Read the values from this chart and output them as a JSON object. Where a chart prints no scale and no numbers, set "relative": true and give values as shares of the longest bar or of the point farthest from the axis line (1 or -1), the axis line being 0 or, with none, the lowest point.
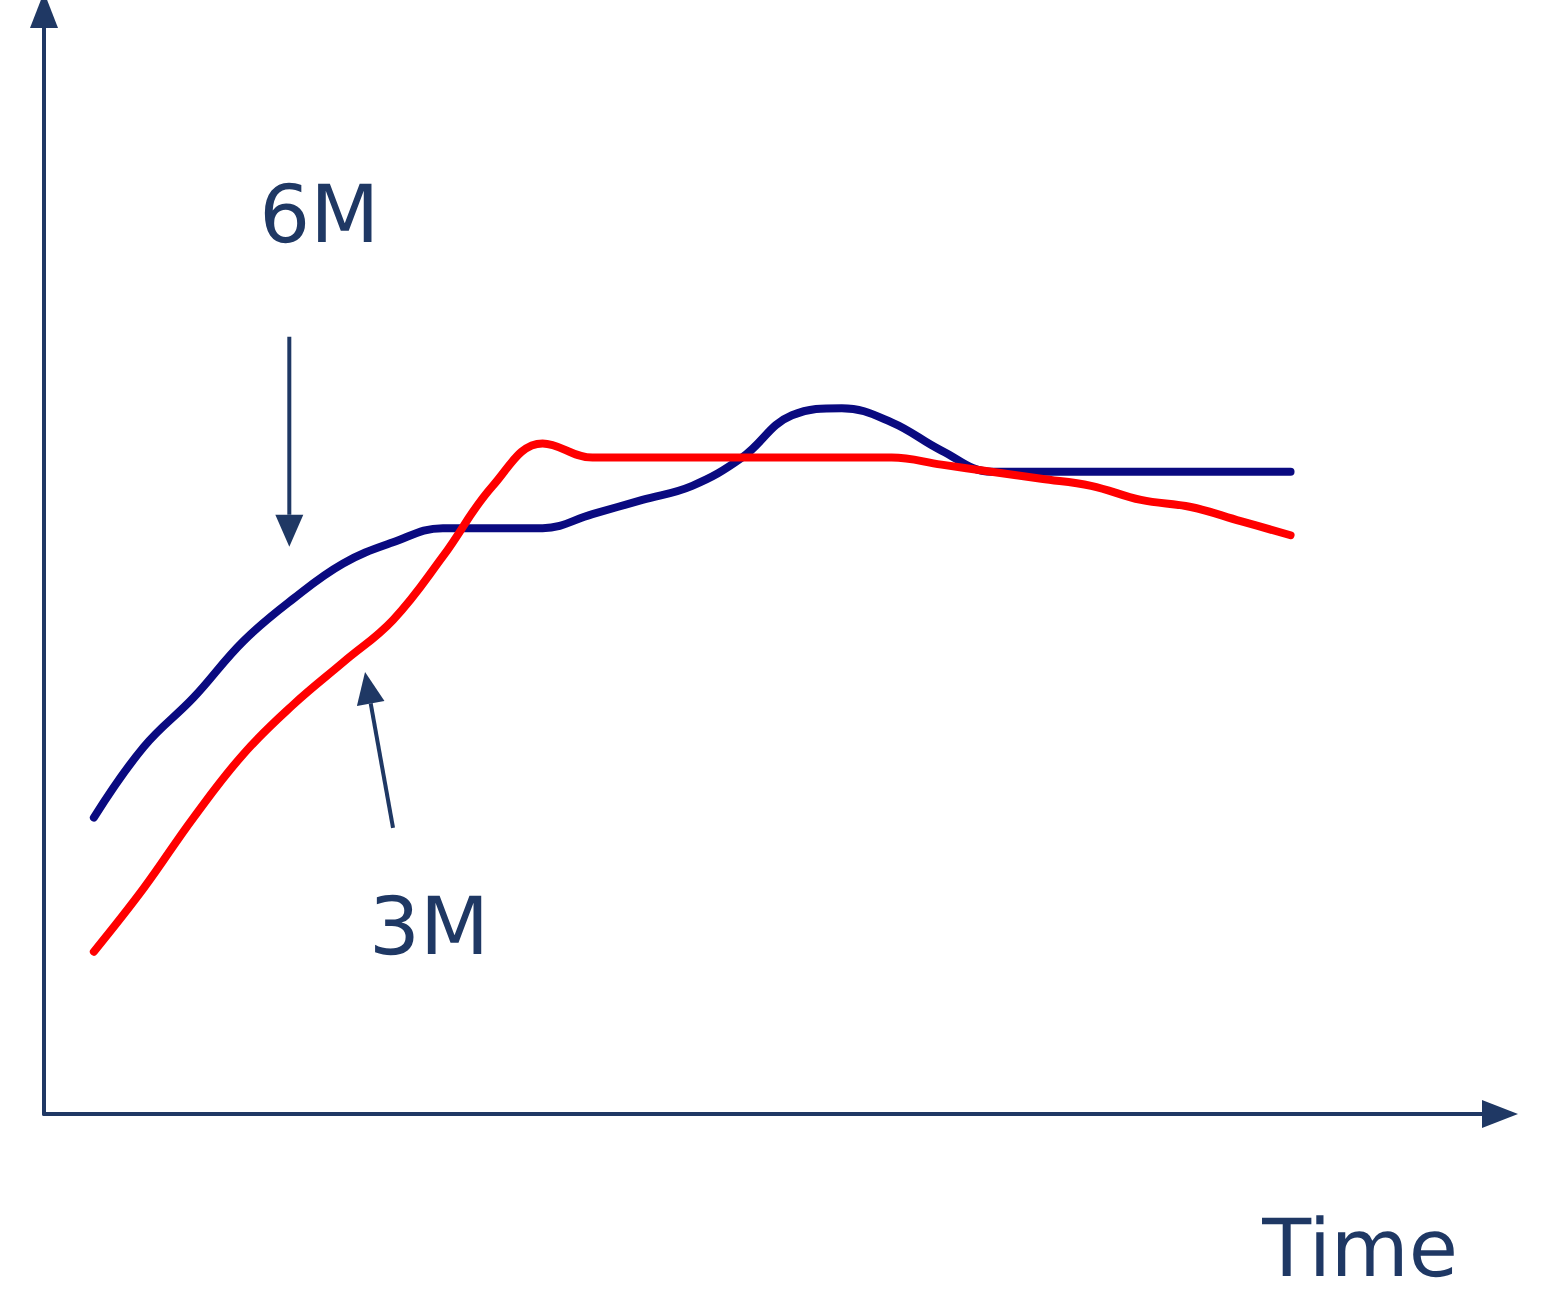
{
  "chart_data": {
    "type": "line",
    "relative": true,
    "xlabel": "Time",
    "grid": false,
    "marker": "none",
    "line_style": "solid",
    "categories": [
      null,
      null,
      null,
      null,
      null,
      null,
      null,
      null,
      null,
      null,
      null,
      null,
      null,
      null,
      null,
      null,
      null,
      null,
      null,
      null,
      null,
      null,
      null,
      null,
      null,
      null,
      null,
      null,
      null,
      null
    ],
    "series": [
      {
        "color": "#0a0a80",
        "values": [
          null,
          0.42,
          0.52,
          0.59,
          0.67,
          0.73,
          0.78,
          0.81,
          0.83,
          0.83,
          0.83,
          0.85,
          0.87,
          0.89,
          0.93,
          0.99,
          1,
          0.98,
          0.94,
          0.91,
          0.91,
          0.91,
          0.91,
          0.91,
          0.91,
          0.91,
          null,
          null,
          null,
          null
        ]
      },
      {
        "color": "#ff0000",
        "values": [
          null,
          0.23,
          0.32,
          0.42,
          0.51,
          0.58,
          0.64,
          0.7,
          0.79,
          0.89,
          0.95,
          0.93,
          0.93,
          0.93,
          0.93,
          0.93,
          0.93,
          0.93,
          0.92,
          0.91,
          0.9,
          0.89,
          0.87,
          0.86,
          0.84,
          0.82,
          null,
          null,
          null,
          null
        ]
      }
    ],
    "annotations": [
      "6M",
      "3M"
    ]
  }
}
